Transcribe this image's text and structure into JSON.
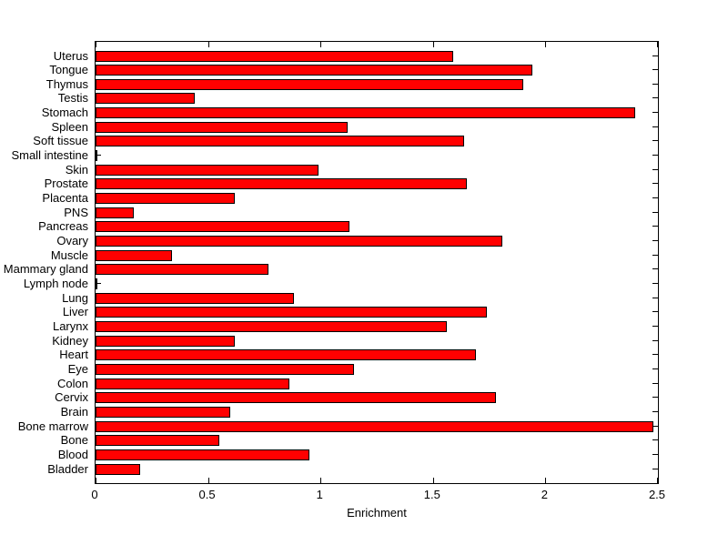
{
  "figure": {
    "background_color": "#FFFFFF",
    "axis_color": "#000000",
    "text_color": "#000000"
  },
  "chart_data": {
    "type": "bar",
    "orientation": "horizontal",
    "title": "",
    "xlabel": "Enrichment",
    "ylabel": "",
    "xlim": [
      0,
      2.5
    ],
    "xticks": [
      0,
      0.5,
      1,
      1.5,
      2,
      2.5
    ],
    "xtick_labels": [
      "0",
      "0.5",
      "1",
      "1.5",
      "2",
      "2.5"
    ],
    "grid": false,
    "legend": null,
    "bar_color": "#FF0000",
    "bar_edge_color": "#000000",
    "categories": [
      "Uterus",
      "Tongue",
      "Thymus",
      "Testis",
      "Stomach",
      "Spleen",
      "Soft tissue",
      "Small intestine",
      "Skin",
      "Prostate",
      "Placenta",
      "PNS",
      "Pancreas",
      "Ovary",
      "Muscle",
      "Mammary gland",
      "Lymph node",
      "Lung",
      "Liver",
      "Larynx",
      "Kidney",
      "Heart",
      "Eye",
      "Colon",
      "Cervix",
      "Brain",
      "Bone marrow",
      "Bone",
      "Blood",
      "Bladder"
    ],
    "values": [
      1.59,
      1.94,
      1.9,
      0.44,
      2.4,
      1.12,
      1.64,
      0.01,
      0.99,
      1.65,
      0.62,
      0.17,
      1.13,
      1.81,
      0.34,
      0.77,
      0.01,
      0.88,
      1.74,
      1.56,
      0.62,
      1.69,
      1.15,
      0.86,
      1.78,
      0.6,
      2.48,
      0.55,
      0.95,
      0.2
    ]
  }
}
